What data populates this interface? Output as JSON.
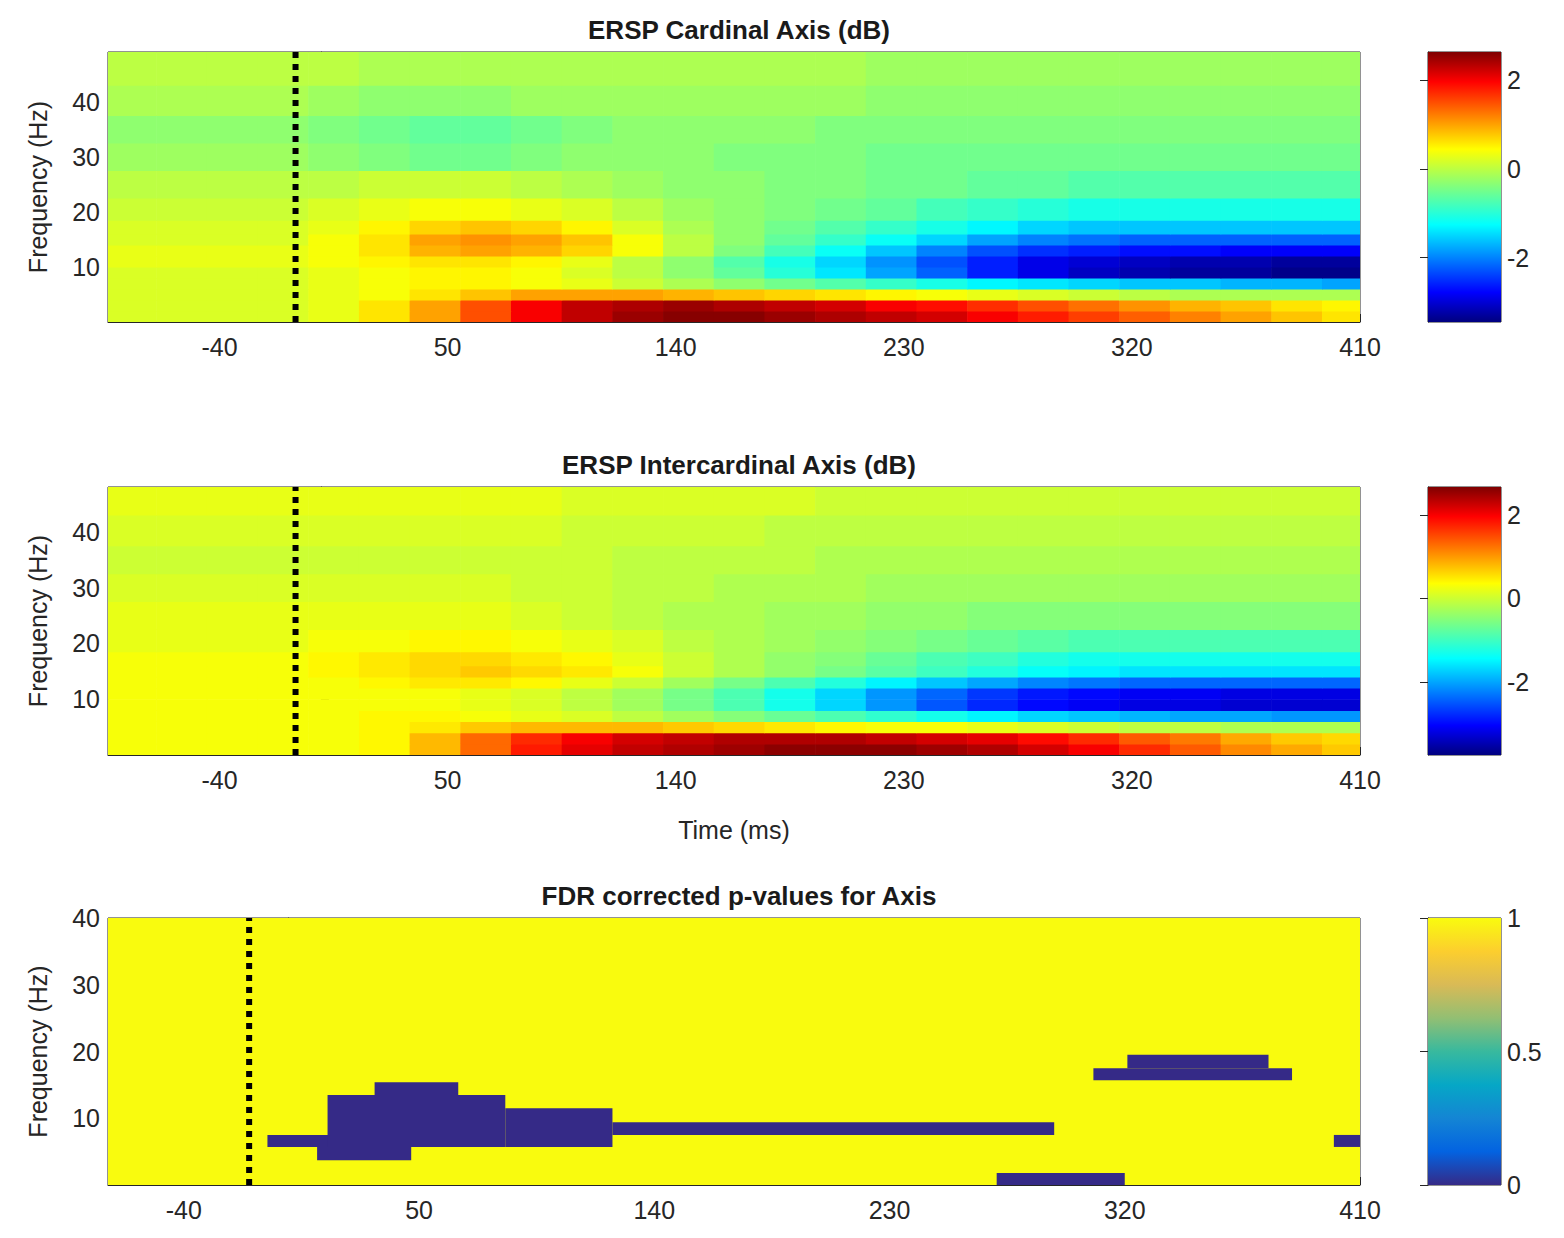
{
  "chart_data": [
    {
      "type": "heatmap",
      "title": "ERSP Cardinal Axis (dB)",
      "y_label": "Frequency (Hz)",
      "xlim": [
        -84,
        410
      ],
      "xticks": [
        -40,
        50,
        140,
        230,
        320,
        410
      ],
      "ylim": [
        0,
        49
      ],
      "yticks": [
        10,
        20,
        30,
        40
      ],
      "marker_x": -10,
      "x": [
        -75,
        -55,
        -35,
        -15,
        5,
        25,
        45,
        65,
        85,
        105,
        125,
        145,
        165,
        185,
        205,
        225,
        245,
        265,
        285,
        305,
        325,
        345,
        365,
        385,
        405
      ],
      "y": [
        1,
        3,
        5,
        7,
        9,
        11,
        13,
        15,
        17,
        20,
        25,
        30,
        35,
        40,
        46
      ],
      "values": [
        [
          0.2,
          0.2,
          0.2,
          0.2,
          0.3,
          0.6,
          1.0,
          1.5,
          2.0,
          2.3,
          2.5,
          2.6,
          2.6,
          2.5,
          2.4,
          2.3,
          2.2,
          2.0,
          1.8,
          1.6,
          1.4,
          1.2,
          1.0,
          0.8,
          0.6
        ],
        [
          0.2,
          0.2,
          0.2,
          0.2,
          0.3,
          0.6,
          1.0,
          1.5,
          2.0,
          2.3,
          2.4,
          2.5,
          2.4,
          2.3,
          2.2,
          2.0,
          1.9,
          1.7,
          1.5,
          1.3,
          1.1,
          0.9,
          0.8,
          0.6,
          0.5
        ],
        [
          0.2,
          0.2,
          0.2,
          0.2,
          0.3,
          0.4,
          0.6,
          0.8,
          1.0,
          1.0,
          1.0,
          0.9,
          0.8,
          0.7,
          0.6,
          0.5,
          0.4,
          0.3,
          0.2,
          0.1,
          0.0,
          -0.1,
          -0.1,
          -0.1,
          -0.1
        ],
        [
          0.2,
          0.2,
          0.2,
          0.2,
          0.3,
          0.4,
          0.5,
          0.5,
          0.4,
          0.3,
          0.1,
          -0.1,
          -0.3,
          -0.5,
          -0.7,
          -0.9,
          -1.1,
          -1.3,
          -1.4,
          -1.5,
          -1.6,
          -1.6,
          -1.7,
          -1.7,
          -1.8
        ],
        [
          0.2,
          0.2,
          0.2,
          0.2,
          0.3,
          0.4,
          0.5,
          0.5,
          0.4,
          0.2,
          0.0,
          -0.3,
          -0.6,
          -1.0,
          -1.4,
          -1.8,
          -2.2,
          -2.6,
          -2.9,
          -3.1,
          -3.2,
          -3.3,
          -3.3,
          -3.4,
          -3.4
        ],
        [
          0.3,
          0.3,
          0.3,
          0.3,
          0.4,
          0.5,
          0.6,
          0.6,
          0.5,
          0.3,
          0.0,
          -0.3,
          -0.7,
          -1.1,
          -1.5,
          -1.9,
          -2.3,
          -2.6,
          -2.9,
          -3.0,
          -3.1,
          -3.2,
          -3.2,
          -3.3,
          -3.3
        ],
        [
          0.3,
          0.3,
          0.3,
          0.3,
          0.4,
          0.6,
          0.9,
          1.0,
          0.9,
          0.7,
          0.4,
          0.0,
          -0.4,
          -0.8,
          -1.2,
          -1.6,
          -2.0,
          -2.3,
          -2.5,
          -2.6,
          -2.7,
          -2.7,
          -2.8,
          -2.8,
          -2.8
        ],
        [
          0.2,
          0.2,
          0.2,
          0.2,
          0.4,
          0.6,
          1.0,
          1.1,
          1.0,
          0.8,
          0.4,
          0.0,
          -0.3,
          -0.6,
          -0.9,
          -1.2,
          -1.5,
          -1.8,
          -2.0,
          -2.1,
          -2.2,
          -2.2,
          -2.2,
          -2.2,
          -2.2
        ],
        [
          0.2,
          0.2,
          0.2,
          0.2,
          0.3,
          0.5,
          0.7,
          0.8,
          0.7,
          0.5,
          0.2,
          -0.1,
          -0.3,
          -0.5,
          -0.7,
          -0.9,
          -1.1,
          -1.3,
          -1.5,
          -1.6,
          -1.6,
          -1.6,
          -1.6,
          -1.6,
          -1.6
        ],
        [
          0.1,
          0.1,
          0.1,
          0.1,
          0.2,
          0.3,
          0.4,
          0.4,
          0.3,
          0.2,
          0.0,
          -0.2,
          -0.3,
          -0.4,
          -0.5,
          -0.6,
          -0.8,
          -0.9,
          -1.0,
          -1.1,
          -1.1,
          -1.1,
          -1.1,
          -1.1,
          -1.1
        ],
        [
          0.0,
          0.0,
          0.0,
          0.0,
          0.0,
          0.1,
          0.1,
          0.1,
          0.0,
          -0.1,
          -0.2,
          -0.3,
          -0.3,
          -0.4,
          -0.4,
          -0.5,
          -0.5,
          -0.6,
          -0.6,
          -0.7,
          -0.7,
          -0.7,
          -0.7,
          -0.7,
          -0.7
        ],
        [
          -0.2,
          -0.2,
          -0.2,
          -0.2,
          -0.3,
          -0.4,
          -0.5,
          -0.5,
          -0.4,
          -0.3,
          -0.3,
          -0.3,
          -0.4,
          -0.4,
          -0.4,
          -0.5,
          -0.5,
          -0.5,
          -0.5,
          -0.5,
          -0.5,
          -0.5,
          -0.5,
          -0.5,
          -0.5
        ],
        [
          -0.3,
          -0.3,
          -0.3,
          -0.3,
          -0.4,
          -0.5,
          -0.6,
          -0.6,
          -0.5,
          -0.4,
          -0.3,
          -0.3,
          -0.3,
          -0.3,
          -0.4,
          -0.4,
          -0.4,
          -0.4,
          -0.4,
          -0.4,
          -0.4,
          -0.4,
          -0.4,
          -0.4,
          -0.4
        ],
        [
          -0.1,
          -0.1,
          -0.1,
          -0.1,
          -0.2,
          -0.3,
          -0.3,
          -0.3,
          -0.2,
          -0.2,
          -0.2,
          -0.2,
          -0.2,
          -0.2,
          -0.2,
          -0.3,
          -0.3,
          -0.3,
          -0.3,
          -0.3,
          -0.3,
          -0.3,
          -0.3,
          -0.3,
          -0.3
        ],
        [
          0.0,
          0.0,
          0.0,
          0.0,
          0.0,
          -0.1,
          -0.1,
          -0.1,
          -0.1,
          -0.1,
          -0.1,
          -0.1,
          -0.1,
          -0.1,
          -0.1,
          -0.2,
          -0.2,
          -0.2,
          -0.2,
          -0.2,
          -0.2,
          -0.2,
          -0.2,
          -0.2,
          -0.2
        ]
      ],
      "colorbar_lim": [
        -3.45,
        2.64
      ],
      "colorbar_ticks": [
        -2,
        0,
        2
      ]
    },
    {
      "type": "heatmap",
      "title": "ERSP Intercardinal Axis (dB)",
      "y_label": "Frequency (Hz)",
      "x_label": "Time (ms)",
      "xlim": [
        -84,
        410
      ],
      "xticks": [
        -40,
        50,
        140,
        230,
        320,
        410
      ],
      "ylim": [
        0,
        48
      ],
      "yticks": [
        10,
        20,
        30,
        40
      ],
      "marker_x": -10,
      "x": [
        -75,
        -55,
        -35,
        -15,
        5,
        25,
        45,
        65,
        85,
        105,
        125,
        145,
        165,
        185,
        205,
        225,
        245,
        265,
        285,
        305,
        325,
        345,
        365,
        385,
        405
      ],
      "y": [
        1,
        3,
        5,
        7,
        9,
        11,
        13,
        15,
        17,
        20,
        25,
        30,
        35,
        40,
        46
      ],
      "values": [
        [
          0.3,
          0.3,
          0.3,
          0.3,
          0.3,
          0.4,
          0.8,
          1.3,
          1.8,
          2.1,
          2.3,
          2.4,
          2.5,
          2.6,
          2.6,
          2.6,
          2.5,
          2.4,
          2.2,
          2.0,
          1.7,
          1.4,
          1.1,
          0.9,
          0.7
        ],
        [
          0.3,
          0.3,
          0.3,
          0.3,
          0.3,
          0.4,
          0.8,
          1.3,
          1.7,
          2.0,
          2.2,
          2.3,
          2.4,
          2.4,
          2.4,
          2.3,
          2.2,
          2.1,
          1.9,
          1.7,
          1.4,
          1.2,
          0.9,
          0.7,
          0.6
        ],
        [
          0.3,
          0.3,
          0.3,
          0.3,
          0.3,
          0.4,
          0.5,
          0.7,
          0.8,
          0.8,
          0.8,
          0.7,
          0.6,
          0.5,
          0.4,
          0.3,
          0.3,
          0.2,
          0.1,
          0.0,
          -0.1,
          -0.1,
          -0.2,
          -0.2,
          -0.2
        ],
        [
          0.3,
          0.3,
          0.3,
          0.3,
          0.3,
          0.4,
          0.4,
          0.3,
          0.2,
          0.1,
          -0.1,
          -0.3,
          -0.5,
          -0.7,
          -0.9,
          -1.1,
          -1.3,
          -1.5,
          -1.7,
          -1.8,
          -1.9,
          -2.0,
          -2.0,
          -2.1,
          -2.1
        ],
        [
          0.3,
          0.3,
          0.3,
          0.3,
          0.3,
          0.3,
          0.3,
          0.2,
          0.1,
          -0.1,
          -0.3,
          -0.6,
          -0.9,
          -1.3,
          -1.7,
          -2.1,
          -2.5,
          -2.8,
          -3.0,
          -3.1,
          -3.2,
          -3.2,
          -3.3,
          -3.3,
          -3.3
        ],
        [
          0.3,
          0.3,
          0.3,
          0.3,
          0.3,
          0.3,
          0.3,
          0.2,
          0.1,
          -0.1,
          -0.3,
          -0.6,
          -0.9,
          -1.3,
          -1.7,
          -2.1,
          -2.4,
          -2.7,
          -2.9,
          -3.0,
          -3.1,
          -3.1,
          -3.2,
          -3.2,
          -3.2
        ],
        [
          0.3,
          0.3,
          0.3,
          0.3,
          0.3,
          0.4,
          0.5,
          0.5,
          0.4,
          0.2,
          0.0,
          -0.3,
          -0.6,
          -0.9,
          -1.2,
          -1.5,
          -1.8,
          -2.0,
          -2.2,
          -2.3,
          -2.4,
          -2.4,
          -2.4,
          -2.4,
          -2.4
        ],
        [
          0.3,
          0.3,
          0.3,
          0.3,
          0.4,
          0.5,
          0.6,
          0.7,
          0.6,
          0.5,
          0.3,
          0.0,
          -0.2,
          -0.4,
          -0.6,
          -0.8,
          -1.0,
          -1.2,
          -1.4,
          -1.5,
          -1.6,
          -1.6,
          -1.6,
          -1.6,
          -1.6
        ],
        [
          0.3,
          0.3,
          0.3,
          0.3,
          0.4,
          0.5,
          0.6,
          0.6,
          0.5,
          0.4,
          0.2,
          0.0,
          -0.2,
          -0.4,
          -0.5,
          -0.7,
          -0.9,
          -1.0,
          -1.2,
          -1.3,
          -1.3,
          -1.3,
          -1.3,
          -1.3,
          -1.3
        ],
        [
          0.2,
          0.2,
          0.2,
          0.2,
          0.3,
          0.3,
          0.4,
          0.4,
          0.3,
          0.2,
          0.1,
          -0.1,
          -0.2,
          -0.3,
          -0.4,
          -0.5,
          -0.6,
          -0.7,
          -0.8,
          -0.9,
          -0.9,
          -0.9,
          -0.9,
          -0.9,
          -0.9
        ],
        [
          0.2,
          0.2,
          0.2,
          0.2,
          0.2,
          0.2,
          0.2,
          0.2,
          0.1,
          0.0,
          -0.1,
          -0.2,
          -0.2,
          -0.3,
          -0.3,
          -0.4,
          -0.4,
          -0.5,
          -0.5,
          -0.5,
          -0.5,
          -0.5,
          -0.5,
          -0.5,
          -0.5
        ],
        [
          0.1,
          0.1,
          0.1,
          0.1,
          0.1,
          0.1,
          0.1,
          0.1,
          0.0,
          0.0,
          -0.1,
          -0.1,
          -0.2,
          -0.2,
          -0.2,
          -0.3,
          -0.3,
          -0.3,
          -0.3,
          -0.3,
          -0.3,
          -0.3,
          -0.3,
          -0.3,
          -0.3
        ],
        [
          0.0,
          0.0,
          0.0,
          0.0,
          0.0,
          0.0,
          0.0,
          0.0,
          0.0,
          0.0,
          -0.1,
          -0.1,
          -0.1,
          -0.1,
          -0.2,
          -0.2,
          -0.2,
          -0.2,
          -0.2,
          -0.2,
          -0.2,
          -0.2,
          -0.2,
          -0.2,
          -0.2
        ],
        [
          0.1,
          0.1,
          0.1,
          0.1,
          0.1,
          0.1,
          0.1,
          0.1,
          0.1,
          0.0,
          0.0,
          0.0,
          0.0,
          -0.1,
          -0.1,
          -0.1,
          -0.1,
          -0.1,
          -0.1,
          -0.1,
          -0.1,
          -0.1,
          -0.1,
          -0.1,
          -0.1
        ],
        [
          0.2,
          0.2,
          0.2,
          0.2,
          0.2,
          0.2,
          0.2,
          0.2,
          0.2,
          0.1,
          0.1,
          0.1,
          0.1,
          0.1,
          0.0,
          0.0,
          0.0,
          0.0,
          0.0,
          0.0,
          0.0,
          0.0,
          0.0,
          0.0,
          0.0
        ]
      ],
      "colorbar_lim": [
        -3.75,
        2.67
      ],
      "colorbar_ticks": [
        -2,
        0,
        2
      ]
    },
    {
      "type": "heatmap",
      "title": "FDR corrected p-values for Axis",
      "y_label": "Frequency (Hz)",
      "xlim": [
        -69,
        410
      ],
      "xticks": [
        -40,
        50,
        140,
        230,
        320,
        410
      ],
      "ylim": [
        0,
        40
      ],
      "yticks": [
        10,
        20,
        30,
        40
      ],
      "marker_x": -15,
      "background": 1,
      "regions": [
        {
          "t": [
            -8,
            20
          ],
          "f": [
            5.7,
            7.5
          ],
          "value": 0
        },
        {
          "t": [
            11,
            47
          ],
          "f": [
            3.7,
            5.7
          ],
          "value": 0
        },
        {
          "t": [
            15,
            83
          ],
          "f": [
            5.7,
            13.5
          ],
          "value": 0
        },
        {
          "t": [
            33,
            65
          ],
          "f": [
            13.5,
            15.4
          ],
          "value": 0
        },
        {
          "t": [
            83,
            124
          ],
          "f": [
            5.7,
            11.5
          ],
          "value": 0
        },
        {
          "t": [
            124,
            293
          ],
          "f": [
            7.5,
            9.4
          ],
          "value": 0
        },
        {
          "t": [
            308,
            384
          ],
          "f": [
            15.7,
            17.5
          ],
          "value": 0
        },
        {
          "t": [
            321,
            375
          ],
          "f": [
            17.5,
            19.5
          ],
          "value": 0
        },
        {
          "t": [
            271,
            320
          ],
          "f": [
            0,
            1.8
          ],
          "value": 0
        },
        {
          "t": [
            400,
            410
          ],
          "f": [
            5.7,
            7.5
          ],
          "value": 0
        }
      ],
      "colorbar_lim": [
        0,
        1
      ],
      "colorbar_ticks": [
        0,
        0.5,
        1
      ]
    }
  ]
}
